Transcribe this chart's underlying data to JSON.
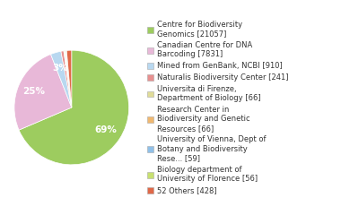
{
  "labels": [
    "Centre for Biodiversity\nGenomics [21057]",
    "Canadian Centre for DNA\nBarcoding [7831]",
    "Mined from GenBank, NCBI [910]",
    "Naturalis Biodiversity Center [241]",
    "Universita di Firenze,\nDepartment of Biology [66]",
    "Research Center in\nBiodiversity and Genetic\nResources [66]",
    "University of Vienna, Dept of\nBotany and Biodiversity\nRese... [59]",
    "Biology department of\nUniversity of Florence [56]",
    "52 Others [428]"
  ],
  "values": [
    21057,
    7831,
    910,
    241,
    66,
    66,
    59,
    56,
    428
  ],
  "colors": [
    "#9dcc5f",
    "#e8b8d8",
    "#b8d8f0",
    "#e89090",
    "#e0dc98",
    "#f0b870",
    "#90c0e8",
    "#c8e070",
    "#e06848"
  ],
  "background_color": "#ffffff",
  "text_color": "#333333",
  "legend_fontsize": 6.0,
  "pct_fontsize": 7.5
}
